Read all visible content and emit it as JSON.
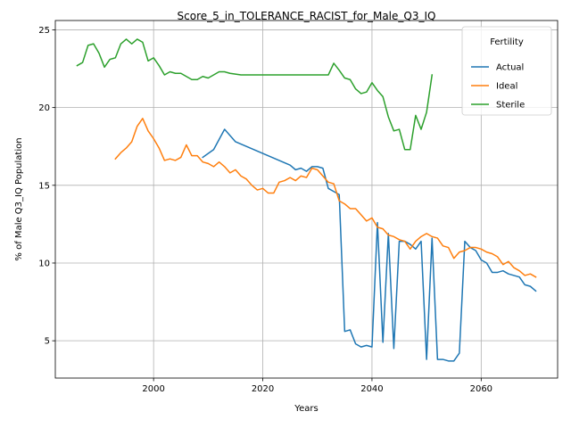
{
  "chart_data": {
    "type": "line",
    "title": "Score_5_in_TOLERANCE_RACIST_for_Male_Q3_IQ",
    "xlabel": "Years",
    "ylabel": "% of Male Q3_IQ Population",
    "xlim": [
      1982,
      2074
    ],
    "ylim": [
      2.6,
      25.6
    ],
    "x_ticks": [
      2000,
      2020,
      2040,
      2060
    ],
    "x_tick_labels": [
      "2000",
      "2020",
      "2040",
      "2060"
    ],
    "y_ticks": [
      5,
      10,
      15,
      20,
      25
    ],
    "y_tick_labels": [
      "5",
      "10",
      "15",
      "20",
      "25"
    ],
    "grid": true,
    "legend": {
      "title": "Fertility",
      "placement": "top-right"
    },
    "series": [
      {
        "name": "Actual",
        "color": "#1f77b4",
        "points": [
          [
            2009,
            16.8
          ],
          [
            2011,
            17.3
          ],
          [
            2013,
            18.6
          ],
          [
            2015,
            17.8
          ],
          [
            2017,
            17.5
          ],
          [
            2019,
            17.2
          ],
          [
            2021,
            16.9
          ],
          [
            2023,
            16.6
          ],
          [
            2025,
            16.3
          ],
          [
            2026,
            16.0
          ],
          [
            2027,
            16.1
          ],
          [
            2028,
            15.9
          ],
          [
            2029,
            16.2
          ],
          [
            2030,
            16.2
          ],
          [
            2031,
            16.1
          ],
          [
            2032,
            14.8
          ],
          [
            2033,
            14.6
          ],
          [
            2034,
            14.4
          ],
          [
            2035,
            5.6
          ],
          [
            2036,
            5.7
          ],
          [
            2037,
            4.8
          ],
          [
            2038,
            4.6
          ],
          [
            2039,
            4.7
          ],
          [
            2040,
            4.6
          ],
          [
            2041,
            12.6
          ],
          [
            2042,
            4.9
          ],
          [
            2043,
            11.9
          ],
          [
            2044,
            4.5
          ],
          [
            2045,
            11.4
          ],
          [
            2046,
            11.4
          ],
          [
            2047,
            11.2
          ],
          [
            2048,
            10.9
          ],
          [
            2049,
            11.4
          ],
          [
            2050,
            3.8
          ],
          [
            2051,
            11.6
          ],
          [
            2052,
            3.8
          ],
          [
            2053,
            3.8
          ],
          [
            2054,
            3.7
          ],
          [
            2055,
            3.7
          ],
          [
            2056,
            4.2
          ],
          [
            2057,
            11.4
          ],
          [
            2058,
            11.0
          ],
          [
            2059,
            10.8
          ],
          [
            2060,
            10.2
          ],
          [
            2061,
            10.0
          ],
          [
            2062,
            9.4
          ],
          [
            2063,
            9.4
          ],
          [
            2064,
            9.5
          ],
          [
            2065,
            9.3
          ],
          [
            2066,
            9.2
          ],
          [
            2067,
            9.1
          ],
          [
            2068,
            8.6
          ],
          [
            2069,
            8.5
          ],
          [
            2070,
            8.2
          ]
        ]
      },
      {
        "name": "Ideal",
        "color": "#ff7f0e",
        "points": [
          [
            1993,
            16.7
          ],
          [
            1994,
            17.1
          ],
          [
            1995,
            17.4
          ],
          [
            1996,
            17.8
          ],
          [
            1997,
            18.8
          ],
          [
            1998,
            19.3
          ],
          [
            1999,
            18.5
          ],
          [
            2000,
            18.0
          ],
          [
            2001,
            17.4
          ],
          [
            2002,
            16.6
          ],
          [
            2003,
            16.7
          ],
          [
            2004,
            16.6
          ],
          [
            2005,
            16.8
          ],
          [
            2006,
            17.6
          ],
          [
            2007,
            16.9
          ],
          [
            2008,
            16.9
          ],
          [
            2009,
            16.5
          ],
          [
            2010,
            16.4
          ],
          [
            2011,
            16.2
          ],
          [
            2012,
            16.5
          ],
          [
            2013,
            16.2
          ],
          [
            2014,
            15.8
          ],
          [
            2015,
            16.0
          ],
          [
            2016,
            15.6
          ],
          [
            2017,
            15.4
          ],
          [
            2018,
            15.0
          ],
          [
            2019,
            14.7
          ],
          [
            2020,
            14.8
          ],
          [
            2021,
            14.5
          ],
          [
            2022,
            14.5
          ],
          [
            2023,
            15.2
          ],
          [
            2024,
            15.3
          ],
          [
            2025,
            15.5
          ],
          [
            2026,
            15.3
          ],
          [
            2027,
            15.6
          ],
          [
            2028,
            15.5
          ],
          [
            2029,
            16.1
          ],
          [
            2030,
            16.0
          ],
          [
            2031,
            15.6
          ],
          [
            2032,
            15.2
          ],
          [
            2033,
            15.1
          ],
          [
            2034,
            14.0
          ],
          [
            2035,
            13.8
          ],
          [
            2036,
            13.5
          ],
          [
            2037,
            13.5
          ],
          [
            2038,
            13.1
          ],
          [
            2039,
            12.7
          ],
          [
            2040,
            12.9
          ],
          [
            2041,
            12.3
          ],
          [
            2042,
            12.2
          ],
          [
            2043,
            11.8
          ],
          [
            2044,
            11.7
          ],
          [
            2045,
            11.5
          ],
          [
            2046,
            11.4
          ],
          [
            2047,
            10.9
          ],
          [
            2048,
            11.4
          ],
          [
            2049,
            11.7
          ],
          [
            2050,
            11.9
          ],
          [
            2051,
            11.7
          ],
          [
            2052,
            11.6
          ],
          [
            2053,
            11.1
          ],
          [
            2054,
            11.0
          ],
          [
            2055,
            10.3
          ],
          [
            2056,
            10.7
          ],
          [
            2057,
            10.8
          ],
          [
            2058,
            11.0
          ],
          [
            2059,
            11.0
          ],
          [
            2060,
            10.9
          ],
          [
            2061,
            10.7
          ],
          [
            2062,
            10.6
          ],
          [
            2063,
            10.4
          ],
          [
            2064,
            9.9
          ],
          [
            2065,
            10.1
          ],
          [
            2066,
            9.7
          ],
          [
            2067,
            9.5
          ],
          [
            2068,
            9.2
          ],
          [
            2069,
            9.3
          ],
          [
            2070,
            9.1
          ]
        ]
      },
      {
        "name": "Sterile",
        "color": "#2ca02c",
        "points": [
          [
            1986,
            22.7
          ],
          [
            1987,
            22.9
          ],
          [
            1988,
            24.0
          ],
          [
            1989,
            24.1
          ],
          [
            1990,
            23.5
          ],
          [
            1991,
            22.6
          ],
          [
            1992,
            23.1
          ],
          [
            1993,
            23.2
          ],
          [
            1994,
            24.1
          ],
          [
            1995,
            24.4
          ],
          [
            1996,
            24.1
          ],
          [
            1997,
            24.4
          ],
          [
            1998,
            24.2
          ],
          [
            1999,
            23.0
          ],
          [
            2000,
            23.2
          ],
          [
            2001,
            22.7
          ],
          [
            2002,
            22.1
          ],
          [
            2003,
            22.3
          ],
          [
            2004,
            22.2
          ],
          [
            2005,
            22.2
          ],
          [
            2006,
            22.0
          ],
          [
            2007,
            21.8
          ],
          [
            2008,
            21.8
          ],
          [
            2009,
            22.0
          ],
          [
            2010,
            21.9
          ],
          [
            2011,
            22.1
          ],
          [
            2012,
            22.3
          ],
          [
            2013,
            22.3
          ],
          [
            2014,
            22.2
          ],
          [
            2015,
            22.15
          ],
          [
            2016,
            22.1
          ],
          [
            2017,
            22.1
          ],
          [
            2018,
            22.1
          ],
          [
            2020,
            22.1
          ],
          [
            2025,
            22.1
          ],
          [
            2030,
            22.1
          ],
          [
            2032,
            22.1
          ],
          [
            2033,
            22.85
          ],
          [
            2034,
            22.4
          ],
          [
            2035,
            21.9
          ],
          [
            2036,
            21.8
          ],
          [
            2037,
            21.2
          ],
          [
            2038,
            20.9
          ],
          [
            2039,
            21.0
          ],
          [
            2040,
            21.6
          ],
          [
            2041,
            21.1
          ],
          [
            2042,
            20.7
          ],
          [
            2043,
            19.4
          ],
          [
            2044,
            18.5
          ],
          [
            2045,
            18.6
          ],
          [
            2046,
            17.3
          ],
          [
            2047,
            17.3
          ],
          [
            2048,
            19.5
          ],
          [
            2049,
            18.6
          ],
          [
            2050,
            19.7
          ],
          [
            2051,
            22.1
          ]
        ]
      }
    ]
  }
}
